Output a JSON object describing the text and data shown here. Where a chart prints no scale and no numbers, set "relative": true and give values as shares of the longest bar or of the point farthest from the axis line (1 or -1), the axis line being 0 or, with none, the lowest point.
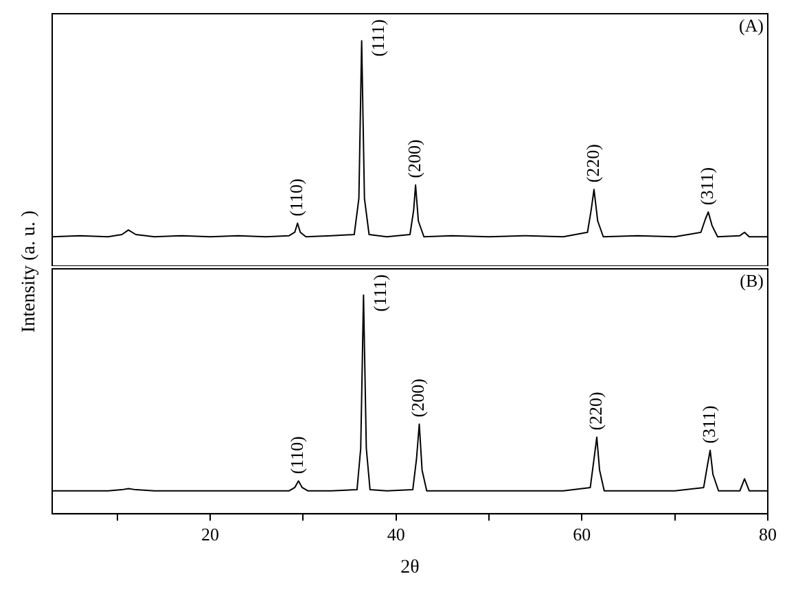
{
  "chart_data": [
    {
      "type": "line",
      "relative": true,
      "ylabel": "Intensity (a. u. )",
      "xlim": [
        3,
        80
      ],
      "tick_labels": false,
      "color": "#000000",
      "marker": "none",
      "line_style": "solid",
      "legend": false,
      "grid": false,
      "x": [
        3,
        6,
        9,
        10.5,
        11.2,
        12,
        14,
        17,
        20,
        23,
        26,
        28.5,
        29.1,
        29.4,
        29.7,
        30.3,
        33,
        35.5,
        36.0,
        36.3,
        36.6,
        37.1,
        39,
        41.5,
        41.9,
        42.1,
        42.4,
        43,
        46,
        50,
        54,
        58,
        60.6,
        61.0,
        61.3,
        61.7,
        62.3,
        66,
        70,
        72.8,
        73.3,
        73.6,
        74.0,
        74.6,
        77,
        77.5,
        78,
        80
      ],
      "values": [
        0.13,
        0.135,
        0.13,
        0.14,
        0.16,
        0.14,
        0.13,
        0.135,
        0.13,
        0.135,
        0.13,
        0.135,
        0.15,
        0.19,
        0.15,
        0.13,
        0.135,
        0.14,
        0.3,
        1,
        0.3,
        0.14,
        0.13,
        0.14,
        0.25,
        0.36,
        0.2,
        0.13,
        0.135,
        0.13,
        0.135,
        0.13,
        0.15,
        0.25,
        0.34,
        0.2,
        0.13,
        0.135,
        0.13,
        0.15,
        0.21,
        0.24,
        0.18,
        0.13,
        0.135,
        0.15,
        0.13,
        0.13
      ],
      "annotations": [
        "(A)",
        {
          "text": "(110)",
          "x": 29.4,
          "y": 0.19
        },
        {
          "text": "(111)",
          "x": 36.3,
          "y": 1
        },
        {
          "text": "(200)",
          "x": 42.1,
          "y": 0.36
        },
        {
          "text": "(220)",
          "x": 61.3,
          "y": 0.34
        },
        {
          "text": "(311)",
          "x": 73.6,
          "y": 0.24
        }
      ]
    },
    {
      "type": "line",
      "relative": true,
      "xlabel": "2θ",
      "xlim": [
        3,
        80
      ],
      "tick_labels": "x",
      "color": "#000000",
      "marker": "none",
      "line_style": "solid",
      "legend": false,
      "grid": false,
      "xticks": [
        {
          "value": 10,
          "label": null
        },
        20,
        {
          "value": 30,
          "label": null
        },
        40,
        {
          "value": 50,
          "label": null
        },
        60,
        {
          "value": 70,
          "label": null
        },
        80
      ],
      "x": [
        3,
        6,
        9,
        10.5,
        11.2,
        12,
        14,
        17,
        20,
        23,
        26,
        28.5,
        29.1,
        29.5,
        29.9,
        30.5,
        33,
        35.8,
        36.2,
        36.5,
        36.8,
        37.2,
        39,
        41.8,
        42.2,
        42.5,
        42.8,
        43.3,
        46,
        50,
        54,
        58,
        60.9,
        61.3,
        61.6,
        61.9,
        62.4,
        66,
        70,
        73.1,
        73.5,
        73.8,
        74.1,
        74.7,
        77,
        77.5,
        78,
        80
      ],
      "values": [
        0.105,
        0.105,
        0.105,
        0.11,
        0.115,
        0.11,
        0.105,
        0.105,
        0.105,
        0.105,
        0.105,
        0.105,
        0.12,
        0.15,
        0.12,
        0.105,
        0.105,
        0.11,
        0.3,
        1,
        0.3,
        0.11,
        0.105,
        0.11,
        0.25,
        0.41,
        0.2,
        0.105,
        0.105,
        0.105,
        0.105,
        0.105,
        0.12,
        0.25,
        0.35,
        0.2,
        0.105,
        0.105,
        0.105,
        0.12,
        0.22,
        0.29,
        0.18,
        0.105,
        0.105,
        0.16,
        0.105,
        0.105
      ],
      "annotations": [
        "(B)",
        {
          "text": "(110)",
          "x": 29.5,
          "y": 0.15
        },
        {
          "text": "(111)",
          "x": 36.5,
          "y": 1
        },
        {
          "text": "(200)",
          "x": 42.5,
          "y": 0.41
        },
        {
          "text": "(220)",
          "x": 61.6,
          "y": 0.35
        },
        {
          "text": "(311)",
          "x": 73.8,
          "y": 0.29
        }
      ]
    }
  ]
}
